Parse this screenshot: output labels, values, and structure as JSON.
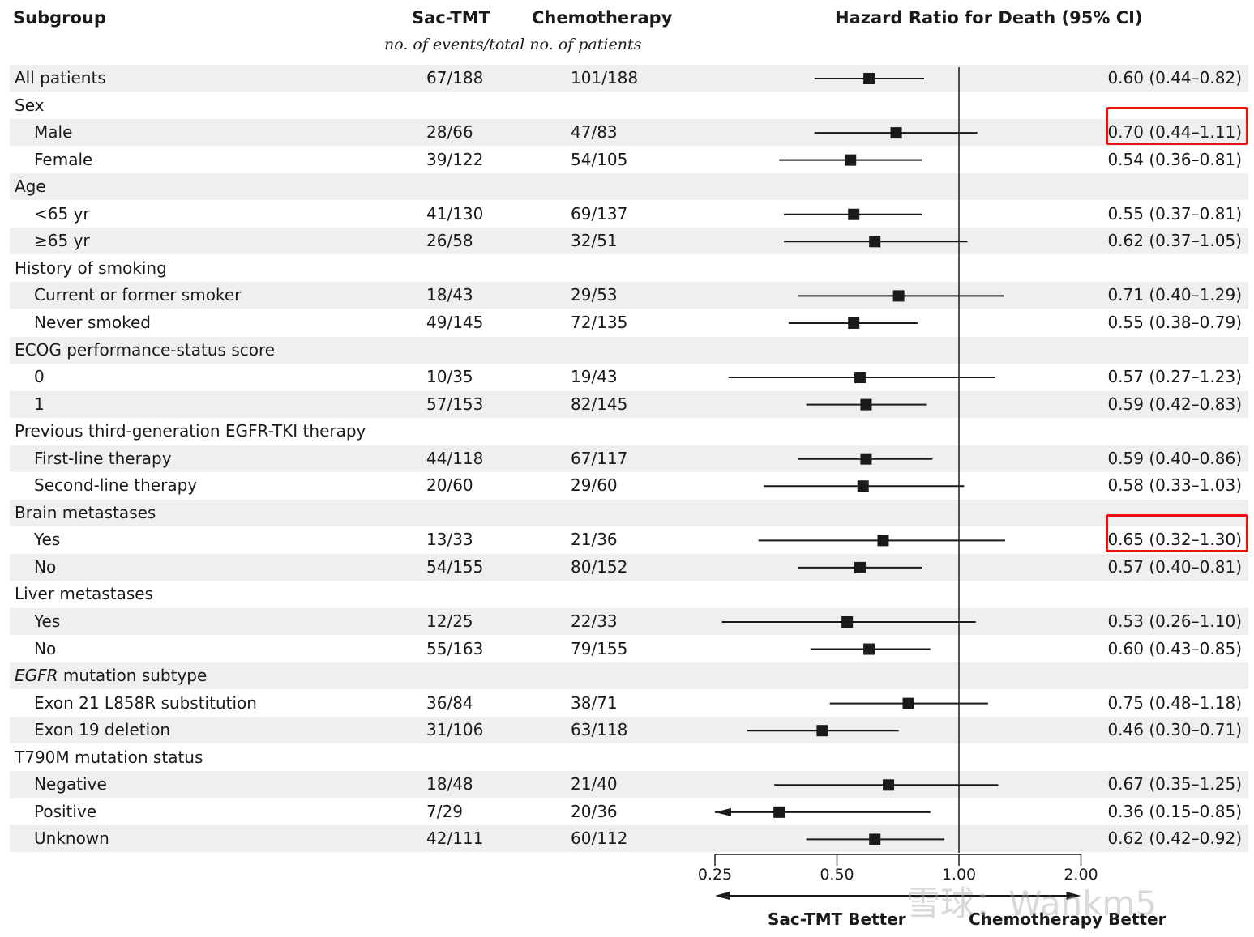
{
  "chart_data": {
    "type": "forest",
    "headers": {
      "subgroup": "Subgroup",
      "sac": "Sac-TMT",
      "chemo": "Chemotherapy",
      "counts_subtitle": "no. of events/total no. of patients",
      "hr": "Hazard Ratio for Death (95% CI)"
    },
    "x_axis": {
      "scale": "log",
      "range": [
        0.25,
        2.0
      ],
      "ticks": [
        "0.25",
        "0.50",
        "1.00",
        "2.00"
      ],
      "tick_values": [
        0.25,
        0.5,
        1.0,
        2.0
      ],
      "reference_line": 1.0
    },
    "direction_labels": {
      "left": "Sac-TMT Better",
      "right": "Chemotherapy Better"
    },
    "highlight_color": "#f01010",
    "rows": [
      {
        "label": "All patients",
        "indent": false,
        "sac": "67/188",
        "chemo": "101/188",
        "hr": 0.6,
        "lo": 0.44,
        "hi": 0.82,
        "ci_text": "0.60 (0.44–0.82)"
      },
      {
        "label": "Sex",
        "indent": false,
        "header": true
      },
      {
        "label": "Male",
        "indent": true,
        "sac": "28/66",
        "chemo": "47/83",
        "hr": 0.7,
        "lo": 0.44,
        "hi": 1.11,
        "ci_text": "0.70 (0.44–1.11)",
        "highlight": true
      },
      {
        "label": "Female",
        "indent": true,
        "sac": "39/122",
        "chemo": "54/105",
        "hr": 0.54,
        "lo": 0.36,
        "hi": 0.81,
        "ci_text": "0.54 (0.36–0.81)"
      },
      {
        "label": "Age",
        "indent": false,
        "header": true
      },
      {
        "label": "<65 yr",
        "indent": true,
        "sac": "41/130",
        "chemo": "69/137",
        "hr": 0.55,
        "lo": 0.37,
        "hi": 0.81,
        "ci_text": "0.55 (0.37–0.81)"
      },
      {
        "label": "≥65 yr",
        "indent": true,
        "sac": "26/58",
        "chemo": "32/51",
        "hr": 0.62,
        "lo": 0.37,
        "hi": 1.05,
        "ci_text": "0.62 (0.37–1.05)"
      },
      {
        "label": "History of smoking",
        "indent": false,
        "header": true
      },
      {
        "label": "Current or former smoker",
        "indent": true,
        "sac": "18/43",
        "chemo": "29/53",
        "hr": 0.71,
        "lo": 0.4,
        "hi": 1.29,
        "ci_text": "0.71 (0.40–1.29)"
      },
      {
        "label": "Never smoked",
        "indent": true,
        "sac": "49/145",
        "chemo": "72/135",
        "hr": 0.55,
        "lo": 0.38,
        "hi": 0.79,
        "ci_text": "0.55 (0.38–0.79)"
      },
      {
        "label": "ECOG performance-status score",
        "indent": false,
        "header": true
      },
      {
        "label": "0",
        "indent": true,
        "sac": "10/35",
        "chemo": "19/43",
        "hr": 0.57,
        "lo": 0.27,
        "hi": 1.23,
        "ci_text": "0.57 (0.27–1.23)"
      },
      {
        "label": "1",
        "indent": true,
        "sac": "57/153",
        "chemo": "82/145",
        "hr": 0.59,
        "lo": 0.42,
        "hi": 0.83,
        "ci_text": "0.59 (0.42–0.83)"
      },
      {
        "label": "Previous third-generation EGFR-TKI therapy",
        "indent": false,
        "header": true
      },
      {
        "label": "First-line therapy",
        "indent": true,
        "sac": "44/118",
        "chemo": "67/117",
        "hr": 0.59,
        "lo": 0.4,
        "hi": 0.86,
        "ci_text": "0.59 (0.40–0.86)"
      },
      {
        "label": "Second-line therapy",
        "indent": true,
        "sac": "20/60",
        "chemo": "29/60",
        "hr": 0.58,
        "lo": 0.33,
        "hi": 1.03,
        "ci_text": "0.58 (0.33–1.03)"
      },
      {
        "label": "Brain metastases",
        "indent": false,
        "header": true
      },
      {
        "label": "Yes",
        "indent": true,
        "sac": "13/33",
        "chemo": "21/36",
        "hr": 0.65,
        "lo": 0.32,
        "hi": 1.3,
        "ci_text": "0.65 (0.32–1.30)",
        "highlight": true
      },
      {
        "label": "No",
        "indent": true,
        "sac": "54/155",
        "chemo": "80/152",
        "hr": 0.57,
        "lo": 0.4,
        "hi": 0.81,
        "ci_text": "0.57 (0.40–0.81)"
      },
      {
        "label": "Liver metastases",
        "indent": false,
        "header": true
      },
      {
        "label": "Yes",
        "indent": true,
        "sac": "12/25",
        "chemo": "22/33",
        "hr": 0.53,
        "lo": 0.26,
        "hi": 1.1,
        "ci_text": "0.53 (0.26–1.10)"
      },
      {
        "label": "No",
        "indent": true,
        "sac": "55/163",
        "chemo": "79/155",
        "hr": 0.6,
        "lo": 0.43,
        "hi": 0.85,
        "ci_text": "0.60 (0.43–0.85)"
      },
      {
        "label": "EGFR",
        "label_suffix": " mutation subtype",
        "italic_prefix": true,
        "indent": false,
        "header": true
      },
      {
        "label": "Exon 21 L858R substitution",
        "indent": true,
        "sac": "36/84",
        "chemo": "38/71",
        "hr": 0.75,
        "lo": 0.48,
        "hi": 1.18,
        "ci_text": "0.75 (0.48–1.18)"
      },
      {
        "label": "Exon 19 deletion",
        "indent": true,
        "sac": "31/106",
        "chemo": "63/118",
        "hr": 0.46,
        "lo": 0.3,
        "hi": 0.71,
        "ci_text": "0.46 (0.30–0.71)"
      },
      {
        "label": "T790M mutation status",
        "indent": false,
        "header": true
      },
      {
        "label": "Negative",
        "indent": true,
        "sac": "18/48",
        "chemo": "21/40",
        "hr": 0.67,
        "lo": 0.35,
        "hi": 1.25,
        "ci_text": "0.67 (0.35–1.25)"
      },
      {
        "label": "Positive",
        "indent": true,
        "sac": "7/29",
        "chemo": "20/36",
        "hr": 0.36,
        "lo": 0.15,
        "hi": 0.85,
        "ci_text": "0.36 (0.15–0.85)"
      },
      {
        "label": "Unknown",
        "indent": true,
        "sac": "42/111",
        "chemo": "60/112",
        "hr": 0.62,
        "lo": 0.42,
        "hi": 0.92,
        "ci_text": "0.62 (0.42–0.92)"
      }
    ]
  },
  "watermark": "雪球：Wankm5"
}
